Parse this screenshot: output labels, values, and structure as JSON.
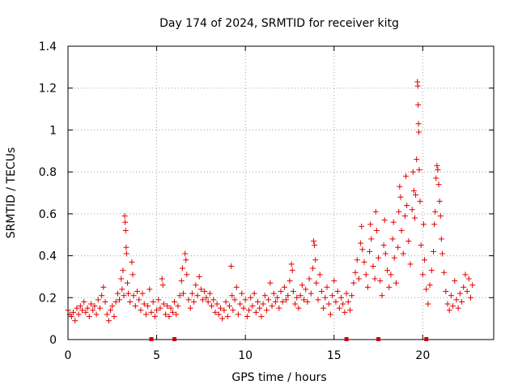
{
  "chart_data": {
    "type": "scatter",
    "title": "Day 174 of 2024, SRMTID for receiver kitg",
    "xlabel": "GPS time / hours",
    "ylabel": "SRMTID / TECUs",
    "xlim": [
      0,
      24
    ],
    "ylim": [
      0,
      1.4
    ],
    "xticks": [
      0,
      5,
      10,
      15,
      20
    ],
    "yticks": [
      0,
      0.2,
      0.4,
      0.6,
      0.8,
      1.0,
      1.2,
      1.4
    ],
    "xtick_labels": [
      "0",
      "5",
      "10",
      "15",
      "20"
    ],
    "ytick_labels": [
      "0",
      "0.2",
      "0.4",
      "0.6",
      "0.8",
      "1",
      "1.2",
      "1.4"
    ],
    "grid": true,
    "marker_color": "#e00000",
    "axis_markers_x": [
      4.7,
      6.0,
      15.7,
      17.5,
      20.2
    ],
    "series": [
      {
        "name": "SRMTID",
        "marker": "plus",
        "points": [
          [
            0.0,
            0.14
          ],
          [
            0.1,
            0.12
          ],
          [
            0.2,
            0.11
          ],
          [
            0.3,
            0.13
          ],
          [
            0.4,
            0.09
          ],
          [
            0.5,
            0.15
          ],
          [
            0.6,
            0.12
          ],
          [
            0.7,
            0.16
          ],
          [
            0.8,
            0.14
          ],
          [
            0.9,
            0.18
          ],
          [
            1.0,
            0.13
          ],
          [
            1.1,
            0.15
          ],
          [
            1.2,
            0.11
          ],
          [
            1.3,
            0.17
          ],
          [
            1.4,
            0.14
          ],
          [
            1.5,
            0.16
          ],
          [
            1.6,
            0.12
          ],
          [
            1.7,
            0.19
          ],
          [
            1.8,
            0.15
          ],
          [
            1.9,
            0.21
          ],
          [
            2.0,
            0.25
          ],
          [
            2.1,
            0.18
          ],
          [
            2.2,
            0.12
          ],
          [
            2.3,
            0.09
          ],
          [
            2.4,
            0.14
          ],
          [
            2.5,
            0.16
          ],
          [
            2.6,
            0.11
          ],
          [
            2.7,
            0.18
          ],
          [
            2.8,
            0.22
          ],
          [
            2.9,
            0.19
          ],
          [
            3.0,
            0.29
          ],
          [
            3.05,
            0.24
          ],
          [
            3.1,
            0.33
          ],
          [
            3.15,
            0.21
          ],
          [
            3.2,
            0.59
          ],
          [
            3.22,
            0.56
          ],
          [
            3.25,
            0.52
          ],
          [
            3.28,
            0.44
          ],
          [
            3.3,
            0.41
          ],
          [
            3.35,
            0.27
          ],
          [
            3.4,
            0.22
          ],
          [
            3.5,
            0.18
          ],
          [
            3.6,
            0.37
          ],
          [
            3.65,
            0.31
          ],
          [
            3.7,
            0.21
          ],
          [
            3.8,
            0.16
          ],
          [
            3.9,
            0.23
          ],
          [
            4.0,
            0.19
          ],
          [
            4.1,
            0.14
          ],
          [
            4.2,
            0.22
          ],
          [
            4.3,
            0.17
          ],
          [
            4.4,
            0.12
          ],
          [
            4.5,
            0.16
          ],
          [
            4.6,
            0.24
          ],
          [
            4.7,
            0.13
          ],
          [
            4.8,
            0.18
          ],
          [
            4.9,
            0.11
          ],
          [
            5.0,
            0.14
          ],
          [
            5.1,
            0.19
          ],
          [
            5.2,
            0.15
          ],
          [
            5.3,
            0.29
          ],
          [
            5.35,
            0.26
          ],
          [
            5.4,
            0.17
          ],
          [
            5.5,
            0.12
          ],
          [
            5.6,
            0.16
          ],
          [
            5.7,
            0.11
          ],
          [
            5.8,
            0.15
          ],
          [
            5.9,
            0.13
          ],
          [
            6.0,
            0.18
          ],
          [
            6.1,
            0.12
          ],
          [
            6.2,
            0.16
          ],
          [
            6.3,
            0.21
          ],
          [
            6.4,
            0.28
          ],
          [
            6.45,
            0.34
          ],
          [
            6.5,
            0.22
          ],
          [
            6.6,
            0.41
          ],
          [
            6.65,
            0.38
          ],
          [
            6.7,
            0.31
          ],
          [
            6.8,
            0.19
          ],
          [
            6.9,
            0.15
          ],
          [
            7.0,
            0.22
          ],
          [
            7.1,
            0.18
          ],
          [
            7.2,
            0.26
          ],
          [
            7.3,
            0.21
          ],
          [
            7.4,
            0.3
          ],
          [
            7.5,
            0.24
          ],
          [
            7.6,
            0.19
          ],
          [
            7.7,
            0.23
          ],
          [
            7.8,
            0.2
          ],
          [
            7.9,
            0.18
          ],
          [
            8.0,
            0.22
          ],
          [
            8.1,
            0.16
          ],
          [
            8.2,
            0.19
          ],
          [
            8.3,
            0.13
          ],
          [
            8.4,
            0.17
          ],
          [
            8.5,
            0.12
          ],
          [
            8.6,
            0.15
          ],
          [
            8.7,
            0.1
          ],
          [
            8.8,
            0.14
          ],
          [
            8.9,
            0.18
          ],
          [
            9.0,
            0.11
          ],
          [
            9.1,
            0.16
          ],
          [
            9.2,
            0.35
          ],
          [
            9.25,
            0.21
          ],
          [
            9.3,
            0.14
          ],
          [
            9.4,
            0.19
          ],
          [
            9.5,
            0.25
          ],
          [
            9.6,
            0.12
          ],
          [
            9.7,
            0.17
          ],
          [
            9.8,
            0.22
          ],
          [
            9.9,
            0.15
          ],
          [
            10.0,
            0.19
          ],
          [
            10.1,
            0.11
          ],
          [
            10.2,
            0.14
          ],
          [
            10.3,
            0.2
          ],
          [
            10.4,
            0.16
          ],
          [
            10.5,
            0.22
          ],
          [
            10.6,
            0.13
          ],
          [
            10.7,
            0.18
          ],
          [
            10.8,
            0.15
          ],
          [
            10.9,
            0.11
          ],
          [
            11.0,
            0.17
          ],
          [
            11.1,
            0.21
          ],
          [
            11.2,
            0.14
          ],
          [
            11.3,
            0.19
          ],
          [
            11.4,
            0.27
          ],
          [
            11.5,
            0.16
          ],
          [
            11.6,
            0.22
          ],
          [
            11.7,
            0.18
          ],
          [
            11.8,
            0.2
          ],
          [
            11.9,
            0.15
          ],
          [
            12.0,
            0.23
          ],
          [
            12.1,
            0.18
          ],
          [
            12.2,
            0.25
          ],
          [
            12.3,
            0.19
          ],
          [
            12.4,
            0.21
          ],
          [
            12.5,
            0.28
          ],
          [
            12.6,
            0.36
          ],
          [
            12.65,
            0.33
          ],
          [
            12.7,
            0.23
          ],
          [
            12.8,
            0.17
          ],
          [
            12.9,
            0.2
          ],
          [
            13.0,
            0.15
          ],
          [
            13.1,
            0.21
          ],
          [
            13.2,
            0.26
          ],
          [
            13.3,
            0.19
          ],
          [
            13.4,
            0.24
          ],
          [
            13.5,
            0.18
          ],
          [
            13.6,
            0.29
          ],
          [
            13.7,
            0.22
          ],
          [
            13.8,
            0.34
          ],
          [
            13.85,
            0.47
          ],
          [
            13.9,
            0.45
          ],
          [
            13.95,
            0.38
          ],
          [
            14.0,
            0.27
          ],
          [
            14.1,
            0.19
          ],
          [
            14.2,
            0.31
          ],
          [
            14.3,
            0.23
          ],
          [
            14.4,
            0.15
          ],
          [
            14.5,
            0.2
          ],
          [
            14.6,
            0.25
          ],
          [
            14.7,
            0.17
          ],
          [
            14.8,
            0.12
          ],
          [
            14.9,
            0.21
          ],
          [
            15.0,
            0.28
          ],
          [
            15.1,
            0.18
          ],
          [
            15.2,
            0.23
          ],
          [
            15.3,
            0.15
          ],
          [
            15.4,
            0.2
          ],
          [
            15.5,
            0.17
          ],
          [
            15.6,
            0.13
          ],
          [
            15.7,
            0.22
          ],
          [
            15.8,
            0.18
          ],
          [
            15.9,
            0.14
          ],
          [
            16.0,
            0.21
          ],
          [
            16.1,
            0.27
          ],
          [
            16.2,
            0.32
          ],
          [
            16.3,
            0.38
          ],
          [
            16.4,
            0.29
          ],
          [
            16.5,
            0.46
          ],
          [
            16.55,
            0.54
          ],
          [
            16.6,
            0.43
          ],
          [
            16.7,
            0.37
          ],
          [
            16.8,
            0.31
          ],
          [
            16.9,
            0.25
          ],
          [
            17.0,
            0.42
          ],
          [
            17.05,
            0.55
          ],
          [
            17.1,
            0.48
          ],
          [
            17.2,
            0.35
          ],
          [
            17.3,
            0.29
          ],
          [
            17.35,
            0.61
          ],
          [
            17.4,
            0.52
          ],
          [
            17.5,
            0.39
          ],
          [
            17.6,
            0.28
          ],
          [
            17.7,
            0.21
          ],
          [
            17.8,
            0.45
          ],
          [
            17.85,
            0.57
          ],
          [
            17.9,
            0.41
          ],
          [
            18.0,
            0.33
          ],
          [
            18.1,
            0.25
          ],
          [
            18.2,
            0.31
          ],
          [
            18.3,
            0.48
          ],
          [
            18.35,
            0.56
          ],
          [
            18.4,
            0.39
          ],
          [
            18.5,
            0.27
          ],
          [
            18.6,
            0.44
          ],
          [
            18.65,
            0.61
          ],
          [
            18.7,
            0.73
          ],
          [
            18.75,
            0.68
          ],
          [
            18.8,
            0.52
          ],
          [
            18.9,
            0.41
          ],
          [
            19.0,
            0.59
          ],
          [
            19.05,
            0.78
          ],
          [
            19.1,
            0.64
          ],
          [
            19.2,
            0.47
          ],
          [
            19.3,
            0.36
          ],
          [
            19.4,
            0.62
          ],
          [
            19.45,
            0.8
          ],
          [
            19.5,
            0.71
          ],
          [
            19.55,
            0.58
          ],
          [
            19.6,
            0.69
          ],
          [
            19.65,
            0.86
          ],
          [
            19.7,
            1.23
          ],
          [
            19.72,
            1.21
          ],
          [
            19.74,
            1.12
          ],
          [
            19.76,
            1.03
          ],
          [
            19.78,
            0.99
          ],
          [
            19.8,
            0.81
          ],
          [
            19.85,
            0.66
          ],
          [
            19.9,
            0.45
          ],
          [
            20.0,
            0.31
          ],
          [
            20.05,
            0.55
          ],
          [
            20.1,
            0.38
          ],
          [
            20.2,
            0.24
          ],
          [
            20.3,
            0.17
          ],
          [
            20.4,
            0.26
          ],
          [
            20.5,
            0.33
          ],
          [
            20.6,
            0.42
          ],
          [
            20.65,
            0.55
          ],
          [
            20.7,
            0.61
          ],
          [
            20.75,
            0.77
          ],
          [
            20.8,
            0.83
          ],
          [
            20.85,
            0.81
          ],
          [
            20.9,
            0.74
          ],
          [
            20.95,
            0.66
          ],
          [
            21.0,
            0.59
          ],
          [
            21.05,
            0.48
          ],
          [
            21.1,
            0.41
          ],
          [
            21.2,
            0.32
          ],
          [
            21.3,
            0.23
          ],
          [
            21.4,
            0.17
          ],
          [
            21.5,
            0.14
          ],
          [
            21.6,
            0.21
          ],
          [
            21.7,
            0.16
          ],
          [
            21.8,
            0.28
          ],
          [
            21.9,
            0.19
          ],
          [
            22.0,
            0.15
          ],
          [
            22.1,
            0.22
          ],
          [
            22.2,
            0.18
          ],
          [
            22.3,
            0.25
          ],
          [
            22.4,
            0.31
          ],
          [
            22.5,
            0.23
          ],
          [
            22.6,
            0.29
          ],
          [
            22.7,
            0.2
          ],
          [
            22.8,
            0.26
          ]
        ]
      }
    ]
  }
}
